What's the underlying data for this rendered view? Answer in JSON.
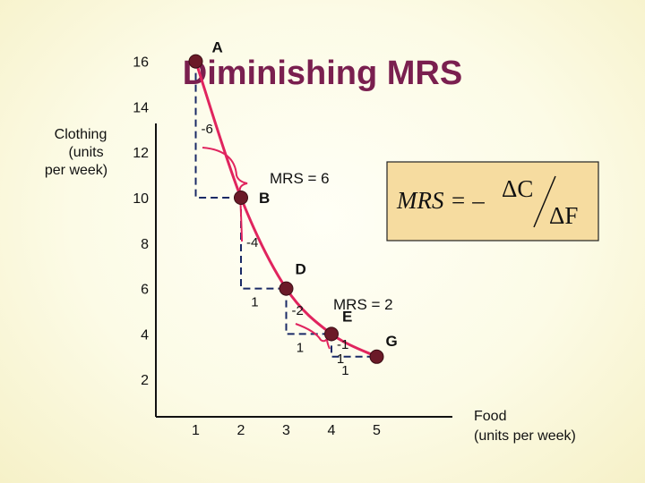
{
  "title": "Diminishing MRS",
  "chart_data": {
    "type": "line",
    "title": "Diminishing MRS",
    "xlabel": [
      "Food",
      "(units per week)"
    ],
    "ylabel": [
      "Clothing",
      "(units",
      "per week)"
    ],
    "x_ticks": [
      1,
      2,
      3,
      4,
      5
    ],
    "y_ticks": [
      2,
      4,
      6,
      8,
      10,
      12,
      14,
      16
    ],
    "xlim": [
      0,
      6
    ],
    "ylim": [
      0,
      17
    ],
    "grid": false,
    "points": [
      {
        "label": "A",
        "x": 1,
        "y": 16
      },
      {
        "label": "B",
        "x": 2,
        "y": 10
      },
      {
        "label": "D",
        "x": 3,
        "y": 6
      },
      {
        "label": "E",
        "x": 4,
        "y": 4
      },
      {
        "label": "G",
        "x": 5,
        "y": 3
      }
    ],
    "steps": [
      {
        "from": "A",
        "to": "B",
        "dC": "-6",
        "dF": ""
      },
      {
        "from": "B",
        "to": "D",
        "dC": "-4",
        "dF": "1"
      },
      {
        "from": "D",
        "to": "E",
        "dC": "-2",
        "dF": "1"
      },
      {
        "from": "E",
        "to": "G",
        "dC": "-1",
        "dF": "1"
      }
    ],
    "extra_labels": [
      {
        "text": "1",
        "x": 4.2,
        "y": 3.5
      }
    ],
    "annotations": [
      {
        "text": "MRS = 6",
        "between": [
          "A",
          "B"
        ]
      },
      {
        "text": "MRS = 2",
        "between": [
          "D",
          "E"
        ]
      }
    ],
    "formula": {
      "lhs": "MRS = –",
      "num": "ΔC",
      "den": "ΔF"
    },
    "colors": {
      "curve": "#e0245e",
      "point": "#6b1a28",
      "title": "#7a1f4f",
      "formula_bg": "#f6dca0",
      "brace": "#e0245e"
    }
  }
}
